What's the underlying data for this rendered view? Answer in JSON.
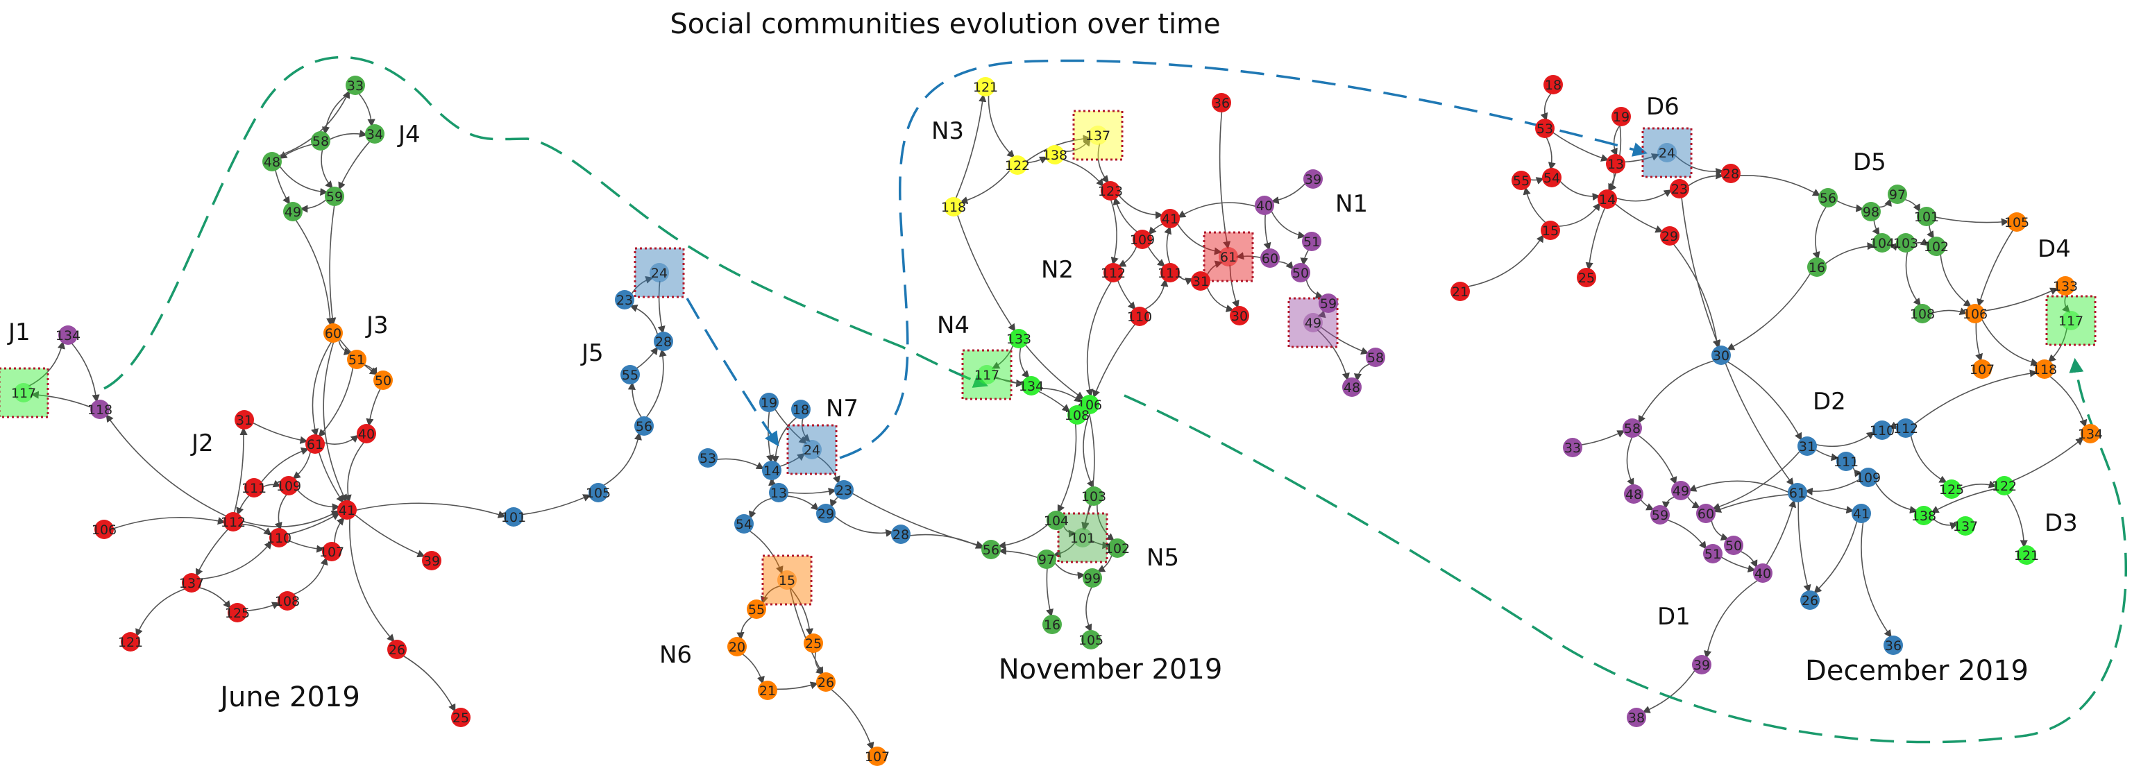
{
  "title": "Social communities evolution over time",
  "periods": [
    {
      "id": "june",
      "label": "June 2019"
    },
    {
      "id": "nov",
      "label": "November 2019"
    },
    {
      "id": "dec",
      "label": "December 2019"
    }
  ],
  "colors": {
    "red": "#e41a1c",
    "green": "#4daf4a",
    "blue": "#377eb8",
    "orange": "#ff7f00",
    "purple": "#984ea3",
    "yellow": "#ffff33",
    "lime": "#33ee33",
    "edge": "#555555",
    "track_green": "#1a9a6c",
    "track_blue": "#1f78b4",
    "highlight": "#b2182b"
  },
  "communities": [
    {
      "id": "J1",
      "label": "J1"
    },
    {
      "id": "J2",
      "label": "J2"
    },
    {
      "id": "J3",
      "label": "J3"
    },
    {
      "id": "J4",
      "label": "J4"
    },
    {
      "id": "J5",
      "label": "J5"
    },
    {
      "id": "N1",
      "label": "N1"
    },
    {
      "id": "N2",
      "label": "N2"
    },
    {
      "id": "N3",
      "label": "N3"
    },
    {
      "id": "N4",
      "label": "N4"
    },
    {
      "id": "N5",
      "label": "N5"
    },
    {
      "id": "N6",
      "label": "N6"
    },
    {
      "id": "N7",
      "label": "N7"
    },
    {
      "id": "D1",
      "label": "D1"
    },
    {
      "id": "D2",
      "label": "D2"
    },
    {
      "id": "D3",
      "label": "D3"
    },
    {
      "id": "D4",
      "label": "D4"
    },
    {
      "id": "D5",
      "label": "D5"
    },
    {
      "id": "D6",
      "label": "D6"
    }
  ],
  "nodes": {
    "june": [
      {
        "id": "33",
        "c": "green"
      },
      {
        "id": "58",
        "c": "green"
      },
      {
        "id": "34",
        "c": "green"
      },
      {
        "id": "48",
        "c": "green"
      },
      {
        "id": "59",
        "c": "green"
      },
      {
        "id": "49",
        "c": "green"
      },
      {
        "id": "60",
        "c": "orange"
      },
      {
        "id": "51",
        "c": "orange"
      },
      {
        "id": "50",
        "c": "orange"
      },
      {
        "id": "134",
        "c": "purple"
      },
      {
        "id": "117",
        "c": "lime",
        "hl": true
      },
      {
        "id": "118",
        "c": "purple"
      },
      {
        "id": "31",
        "c": "red"
      },
      {
        "id": "61",
        "c": "red"
      },
      {
        "id": "40",
        "c": "red"
      },
      {
        "id": "111",
        "c": "red"
      },
      {
        "id": "109",
        "c": "red"
      },
      {
        "id": "41",
        "c": "red"
      },
      {
        "id": "106",
        "c": "red"
      },
      {
        "id": "112",
        "c": "red"
      },
      {
        "id": "110",
        "c": "red"
      },
      {
        "id": "107",
        "c": "red"
      },
      {
        "id": "39",
        "c": "red"
      },
      {
        "id": "137",
        "c": "red"
      },
      {
        "id": "125",
        "c": "red"
      },
      {
        "id": "108",
        "c": "red"
      },
      {
        "id": "121",
        "c": "red"
      },
      {
        "id": "26",
        "c": "red"
      },
      {
        "id": "25",
        "c": "red"
      },
      {
        "id": "24",
        "c": "blue",
        "hl": true
      },
      {
        "id": "23",
        "c": "blue"
      },
      {
        "id": "28",
        "c": "blue"
      },
      {
        "id": "55",
        "c": "blue"
      },
      {
        "id": "56",
        "c": "blue"
      },
      {
        "id": "105",
        "c": "blue"
      },
      {
        "id": "101",
        "c": "blue"
      }
    ],
    "nov": [
      {
        "id": "121",
        "c": "yellow"
      },
      {
        "id": "137",
        "c": "yellow",
        "hl": true
      },
      {
        "id": "138",
        "c": "yellow"
      },
      {
        "id": "122",
        "c": "yellow"
      },
      {
        "id": "118",
        "c": "yellow"
      },
      {
        "id": "36",
        "c": "red"
      },
      {
        "id": "123",
        "c": "red"
      },
      {
        "id": "41",
        "c": "red"
      },
      {
        "id": "109",
        "c": "red"
      },
      {
        "id": "61",
        "c": "red",
        "hl": true
      },
      {
        "id": "112",
        "c": "red"
      },
      {
        "id": "111",
        "c": "red"
      },
      {
        "id": "31",
        "c": "red"
      },
      {
        "id": "110",
        "c": "red"
      },
      {
        "id": "30",
        "c": "red"
      },
      {
        "id": "39",
        "c": "purple"
      },
      {
        "id": "40",
        "c": "purple"
      },
      {
        "id": "60",
        "c": "purple"
      },
      {
        "id": "51",
        "c": "purple"
      },
      {
        "id": "50",
        "c": "purple"
      },
      {
        "id": "59",
        "c": "purple"
      },
      {
        "id": "49",
        "c": "purple",
        "hl": true
      },
      {
        "id": "58",
        "c": "purple"
      },
      {
        "id": "48",
        "c": "purple"
      },
      {
        "id": "133",
        "c": "lime"
      },
      {
        "id": "117",
        "c": "lime",
        "hl": true
      },
      {
        "id": "134",
        "c": "lime"
      },
      {
        "id": "106",
        "c": "lime"
      },
      {
        "id": "108",
        "c": "lime"
      },
      {
        "id": "103",
        "c": "green"
      },
      {
        "id": "104",
        "c": "green"
      },
      {
        "id": "101",
        "c": "green",
        "hl": true
      },
      {
        "id": "97",
        "c": "green"
      },
      {
        "id": "102",
        "c": "green"
      },
      {
        "id": "99",
        "c": "green"
      },
      {
        "id": "16",
        "c": "green"
      },
      {
        "id": "105",
        "c": "green"
      },
      {
        "id": "56",
        "c": "green"
      },
      {
        "id": "19",
        "c": "blue"
      },
      {
        "id": "18",
        "c": "blue"
      },
      {
        "id": "53",
        "c": "blue"
      },
      {
        "id": "14",
        "c": "blue"
      },
      {
        "id": "24",
        "c": "blue",
        "hl": true
      },
      {
        "id": "13",
        "c": "blue"
      },
      {
        "id": "23",
        "c": "blue"
      },
      {
        "id": "54",
        "c": "blue"
      },
      {
        "id": "29",
        "c": "blue"
      },
      {
        "id": "28",
        "c": "blue"
      },
      {
        "id": "15",
        "c": "orange",
        "hl": true
      },
      {
        "id": "55",
        "c": "orange"
      },
      {
        "id": "20",
        "c": "orange"
      },
      {
        "id": "25",
        "c": "orange"
      },
      {
        "id": "21",
        "c": "orange"
      },
      {
        "id": "26",
        "c": "orange"
      },
      {
        "id": "107",
        "c": "orange"
      }
    ],
    "dec": [
      {
        "id": "18",
        "c": "red"
      },
      {
        "id": "53",
        "c": "red"
      },
      {
        "id": "19",
        "c": "red"
      },
      {
        "id": "55",
        "c": "red"
      },
      {
        "id": "54",
        "c": "red"
      },
      {
        "id": "13",
        "c": "red"
      },
      {
        "id": "14",
        "c": "red"
      },
      {
        "id": "23",
        "c": "red"
      },
      {
        "id": "28",
        "c": "red"
      },
      {
        "id": "15",
        "c": "red"
      },
      {
        "id": "29",
        "c": "red"
      },
      {
        "id": "25",
        "c": "red"
      },
      {
        "id": "21",
        "c": "red"
      },
      {
        "id": "24",
        "c": "blue",
        "hl": true
      },
      {
        "id": "56",
        "c": "green"
      },
      {
        "id": "98",
        "c": "green"
      },
      {
        "id": "97",
        "c": "green"
      },
      {
        "id": "101",
        "c": "green"
      },
      {
        "id": "16",
        "c": "green"
      },
      {
        "id": "104",
        "c": "green"
      },
      {
        "id": "103",
        "c": "green"
      },
      {
        "id": "102",
        "c": "green"
      },
      {
        "id": "108",
        "c": "green"
      },
      {
        "id": "105",
        "c": "orange"
      },
      {
        "id": "133",
        "c": "orange"
      },
      {
        "id": "117",
        "c": "lime",
        "hl": true
      },
      {
        "id": "106",
        "c": "orange"
      },
      {
        "id": "107",
        "c": "orange"
      },
      {
        "id": "118",
        "c": "orange"
      },
      {
        "id": "134",
        "c": "orange"
      },
      {
        "id": "30",
        "c": "blue"
      },
      {
        "id": "31",
        "c": "blue"
      },
      {
        "id": "110",
        "c": "blue"
      },
      {
        "id": "112",
        "c": "blue"
      },
      {
        "id": "111",
        "c": "blue"
      },
      {
        "id": "109",
        "c": "blue"
      },
      {
        "id": "61",
        "c": "blue"
      },
      {
        "id": "41",
        "c": "blue"
      },
      {
        "id": "26",
        "c": "blue"
      },
      {
        "id": "36",
        "c": "blue"
      },
      {
        "id": "125",
        "c": "lime"
      },
      {
        "id": "122",
        "c": "lime"
      },
      {
        "id": "138",
        "c": "lime"
      },
      {
        "id": "137",
        "c": "lime"
      },
      {
        "id": "121",
        "c": "lime"
      },
      {
        "id": "33",
        "c": "purple"
      },
      {
        "id": "58",
        "c": "purple"
      },
      {
        "id": "48",
        "c": "purple"
      },
      {
        "id": "49",
        "c": "purple"
      },
      {
        "id": "59",
        "c": "purple"
      },
      {
        "id": "60",
        "c": "purple"
      },
      {
        "id": "50",
        "c": "purple"
      },
      {
        "id": "51",
        "c": "purple"
      },
      {
        "id": "40",
        "c": "purple"
      },
      {
        "id": "39",
        "c": "purple"
      },
      {
        "id": "38",
        "c": "purple"
      }
    ]
  }
}
